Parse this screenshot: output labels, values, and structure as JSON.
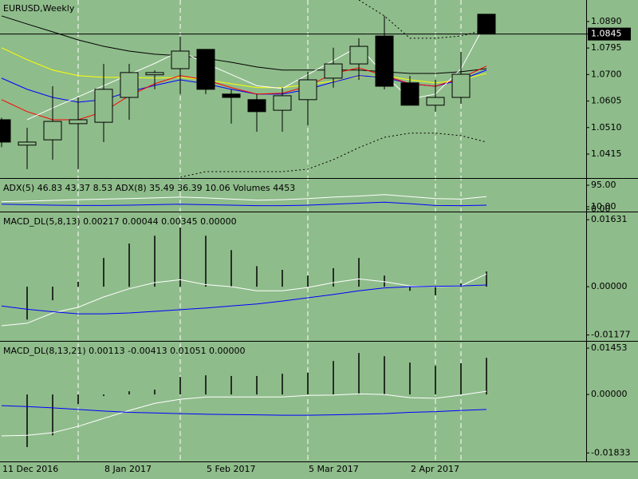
{
  "chart_data": [
    {
      "type": "candlestick",
      "title": "EURUSD,Weekly",
      "categories": [
        "11 Dec 2016",
        null,
        null,
        null,
        "8 Jan 2017",
        null,
        null,
        null,
        "5 Feb 2017",
        null,
        null,
        null,
        "5 Mar 2017",
        null,
        null,
        null,
        "2 Apr 2017",
        null,
        null,
        null
      ],
      "open": [
        1.0538,
        1.0447,
        1.0466,
        1.0524,
        1.0529,
        1.0618,
        1.0699,
        1.0721,
        1.079,
        1.063,
        1.061,
        1.0572,
        1.061,
        1.0687,
        1.0738,
        1.0838,
        1.067,
        1.059,
        1.0618,
        1.0916
      ],
      "high": [
        1.0545,
        1.0509,
        1.0658,
        1.0618,
        1.0738,
        1.0738,
        1.0715,
        1.0836,
        1.079,
        1.0647,
        1.063,
        1.0653,
        1.071,
        1.0796,
        1.083,
        1.091,
        1.0695,
        1.0681,
        1.0781,
        1.0916
      ],
      "low": [
        1.044,
        1.0361,
        1.0395,
        1.0361,
        1.0458,
        1.0538,
        1.0647,
        1.063,
        1.063,
        1.0524,
        1.0495,
        1.0495,
        1.0518,
        1.0653,
        1.0681,
        1.0647,
        1.059,
        1.0567,
        1.0595,
        1.0845
      ],
      "close": [
        1.0458,
        1.0458,
        1.0532,
        1.0538,
        1.0647,
        1.0707,
        1.0707,
        1.0784,
        1.0647,
        1.0618,
        1.0567,
        1.0624,
        1.0681,
        1.0738,
        1.0801,
        1.0658,
        1.059,
        1.0618,
        1.0701,
        1.0845
      ],
      "series": [
        {
          "color": "#000000",
          "values": [
            1.091,
            1.0881,
            1.0853,
            1.0824,
            1.0801,
            1.0784,
            1.0773,
            1.0767,
            1.0758,
            1.0744,
            1.0727,
            1.0716,
            1.0716,
            1.0716,
            1.0716,
            1.071,
            1.0704,
            1.0704,
            1.071,
            1.0721
          ]
        },
        {
          "color": "#ffff00",
          "values": [
            1.0796,
            1.0753,
            1.0716,
            1.0696,
            1.069,
            1.069,
            1.0687,
            1.069,
            1.0681,
            1.0667,
            1.0653,
            1.0653,
            1.0664,
            1.0676,
            1.0693,
            1.0696,
            1.0681,
            1.067,
            1.0681,
            1.0704
          ]
        },
        {
          "color": "#0000ff",
          "values": [
            1.0687,
            1.0647,
            1.0618,
            1.0601,
            1.061,
            1.0638,
            1.0661,
            1.0681,
            1.0667,
            1.0647,
            1.063,
            1.063,
            1.0647,
            1.0673,
            1.0696,
            1.069,
            1.0667,
            1.0658,
            1.0681,
            1.0716
          ]
        },
        {
          "color": "#ff0000",
          "values": [
            1.061,
            1.0567,
            1.0538,
            1.0538,
            1.0567,
            1.0624,
            1.0667,
            1.0696,
            1.0681,
            1.0653,
            1.063,
            1.0633,
            1.0658,
            1.0704,
            1.0724,
            1.0696,
            1.0667,
            1.0658,
            1.0687,
            1.073
          ]
        },
        {
          "color": "#ffffff",
          "values": [
            null,
            1.0538,
            1.058,
            1.062,
            1.066,
            1.07,
            1.074,
            1.0784,
            1.074,
            1.07,
            1.066,
            1.065,
            1.07,
            1.075,
            1.0801,
            1.07,
            1.0612,
            1.063,
            1.072,
            1.089
          ]
        },
        {
          "color": "#000000",
          "style": "dotted",
          "values": [
            null,
            null,
            null,
            null,
            null,
            null,
            null,
            null,
            null,
            null,
            null,
            null,
            null,
            null,
            1.0967,
            1.091,
            1.083,
            1.083,
            1.0838,
            1.0861
          ]
        },
        {
          "color": "#000000",
          "style": "dotted",
          "values": [
            null,
            null,
            null,
            null,
            null,
            null,
            null,
            1.0332,
            1.0352,
            1.0352,
            1.0352,
            1.0352,
            1.0361,
            1.0395,
            1.0438,
            1.0475,
            1.049,
            1.049,
            1.0481,
            1.0458
          ]
        }
      ],
      "last_price": 1.0845,
      "ylim": [
        1.0332,
        1.0967
      ],
      "yticks": [
        {
          "value": 1.089,
          "label": "1.0890"
        },
        1.0795,
        {
          "value": 1.07,
          "label": "1.0700"
        },
        1.0605,
        {
          "value": 1.051,
          "label": "1.0510"
        },
        1.0415
      ]
    },
    {
      "type": "line",
      "title": "ADX(5) 46.83 43.37 8.53 ADX(8) 35.49 36.39 10.06 Volumes 4453",
      "series": [
        {
          "color": "#ffffff",
          "values": [
            30,
            32,
            35,
            38,
            40,
            42,
            45,
            48,
            45,
            40,
            36,
            38,
            42,
            48,
            52,
            58,
            50,
            42,
            40,
            50
          ]
        },
        {
          "color": "#0000ff",
          "values": [
            20,
            18,
            16,
            15,
            15,
            16,
            18,
            20,
            18,
            16,
            14,
            14,
            16,
            20,
            24,
            28,
            22,
            15,
            14,
            16
          ]
        }
      ],
      "ylim": [
        -6,
        114
      ],
      "yticks": [
        {
          "value": 95,
          "label": "95.00"
        },
        {
          "value": 10,
          "label": "10.00"
        },
        {
          "value": 0,
          "label": "0.00"
        }
      ]
    },
    {
      "type": "macd",
      "title": "MACD_DL(5,8,13) 0.00217 0.00044 0.00345 0.00000",
      "values": [
        null,
        -0.008,
        -0.0033,
        0.0012,
        0.007,
        0.0105,
        0.0124,
        0.0144,
        0.0124,
        0.0089,
        0.005,
        0.0041,
        0.0027,
        0.0045,
        0.007,
        0.0027,
        -0.001,
        -0.0021,
        0.0008,
        0.0037
      ],
      "series": [
        {
          "color": "#ffffff",
          "values": [
            -0.0095,
            -0.0089,
            -0.0064,
            -0.005,
            -0.0025,
            -0.0005,
            0.001,
            0.0017,
            0.0005,
            0.0,
            -0.001,
            -0.001,
            -0.0002,
            0.001,
            0.0019,
            0.0012,
            0.0002,
            0.0,
            0.0002,
            0.0031
          ]
        },
        {
          "color": "#0000ff",
          "values": [
            -0.0047,
            -0.0055,
            -0.0061,
            -0.0066,
            -0.0066,
            -0.0064,
            -0.006,
            -0.0056,
            -0.0052,
            -0.0047,
            -0.0042,
            -0.0035,
            -0.0027,
            -0.0019,
            -0.001,
            -0.0003,
            0.0,
            0.0001,
            0.0002,
            0.0004
          ]
        }
      ],
      "ylim": [
        -0.013,
        0.0179
      ],
      "yticks": [
        0.01631,
        {
          "value": 0,
          "label": "0.00000"
        },
        -0.01177
      ]
    },
    {
      "type": "macd",
      "title": "MACD_DL(8,13,21) 0.00113 -0.00413 0.01051 0.00000",
      "values": [
        null,
        -0.0165,
        -0.0128,
        -0.003,
        -0.0005,
        0.001,
        0.0015,
        0.0055,
        0.006,
        0.0058,
        0.0058,
        0.0065,
        0.0068,
        0.0105,
        0.013,
        0.012,
        0.01,
        0.009,
        0.0098,
        0.0115
      ],
      "series": [
        {
          "color": "#ffffff",
          "values": [
            -0.013,
            -0.0128,
            -0.012,
            -0.01,
            -0.0075,
            -0.005,
            -0.0028,
            -0.0015,
            -0.0008,
            -0.0008,
            -0.0008,
            -0.0008,
            -0.0003,
            -0.0002,
            0.0002,
            0.0,
            -0.001,
            -0.0012,
            -0.0002,
            0.001
          ]
        },
        {
          "color": "#0000ff",
          "values": [
            -0.0035,
            -0.0038,
            -0.0042,
            -0.0047,
            -0.0052,
            -0.0056,
            -0.0058,
            -0.006,
            -0.0062,
            -0.0063,
            -0.0064,
            -0.0065,
            -0.0065,
            -0.0064,
            -0.0062,
            -0.006,
            -0.0056,
            -0.0054,
            -0.005,
            -0.0047
          ]
        }
      ],
      "ylim": [
        -0.021,
        0.0163
      ],
      "yticks": [
        0.01453,
        {
          "value": 0,
          "label": "0.00000"
        },
        -0.01833
      ]
    }
  ]
}
